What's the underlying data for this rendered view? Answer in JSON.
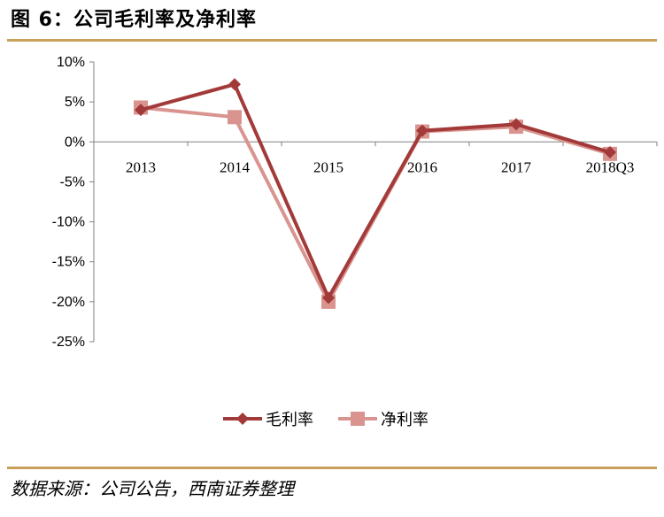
{
  "title": "图 6：公司毛利率及净利率",
  "source": "数据来源：公司公告，西南证券整理",
  "colors": {
    "rule": "#c8a05a",
    "series_gross": "#a33a3a",
    "series_net": "#d99490"
  },
  "chart_data": {
    "type": "line",
    "categories": [
      "2013",
      "2014",
      "2015",
      "2016",
      "2017",
      "2018Q3"
    ],
    "y_ticks": [
      "10%",
      "5%",
      "0%",
      "-5%",
      "-10%",
      "-15%",
      "-20%",
      "-25%"
    ],
    "ylim": [
      -25,
      10
    ],
    "series": [
      {
        "name": "毛利率",
        "marker": "diamond",
        "values": [
          4.0,
          7.2,
          -19.5,
          1.4,
          2.2,
          -1.3
        ]
      },
      {
        "name": "净利率",
        "marker": "square",
        "values": [
          4.3,
          3.1,
          -20.0,
          1.3,
          1.9,
          -1.5
        ]
      }
    ],
    "legend_position": "bottom"
  }
}
